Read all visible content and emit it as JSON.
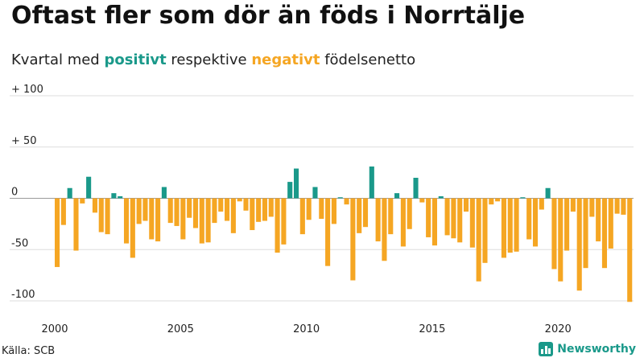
{
  "title": "Oftast fler som dör än föds i Norrtälje",
  "subtitle": {
    "prefix": "Kvartal med ",
    "positive_word": "positivt",
    "middle": " respektive ",
    "negative_word": "negativt",
    "suffix": " födelsenetto"
  },
  "source": "Källa: SCB",
  "brand": "Newsworthy",
  "colors": {
    "positive": "#1a998a",
    "negative": "#f5a623",
    "grid": "#dddddd",
    "zero": "#9a9a9a",
    "text": "#222222"
  },
  "chart_data": {
    "type": "bar",
    "title": "Oftast fler som dör än föds i Norrtälje",
    "subtitle": "Kvartal med positivt respektive negativt födelsenetto",
    "xlabel": "",
    "ylabel": "",
    "ylim": [
      -100,
      100
    ],
    "yticks": [
      100,
      50,
      0,
      -50,
      -100
    ],
    "ytick_labels": [
      "+ 100",
      "+  50",
      "0",
      "-50",
      "-100"
    ],
    "xticks": [
      "2000",
      "2005",
      "2010",
      "2015",
      "2020"
    ],
    "x_start": "2000 Q1",
    "frequency": "quarterly",
    "values": [
      -67,
      -26,
      10,
      -51,
      -5,
      21,
      -14,
      -33,
      -35,
      5,
      2,
      -44,
      -58,
      -25,
      -22,
      -40,
      -42,
      11,
      -24,
      -27,
      -40,
      -19,
      -29,
      -44,
      -43,
      -24,
      -13,
      -22,
      -34,
      -3,
      -12,
      -31,
      -23,
      -22,
      -18,
      -53,
      -45,
      16,
      29,
      -35,
      -21,
      11,
      -20,
      -66,
      -25,
      1,
      -6,
      -80,
      -34,
      -28,
      31,
      -42,
      -61,
      -35,
      5,
      -47,
      -30,
      20,
      -4,
      -38,
      -46,
      2,
      -36,
      -39,
      -43,
      -13,
      -48,
      -81,
      -63,
      -6,
      -3,
      -58,
      -53,
      -52,
      1,
      -40,
      -47,
      -11,
      10,
      -69,
      -81,
      -51,
      -13,
      -90,
      -68,
      -18,
      -42,
      -68,
      -49,
      -15,
      -16,
      -101
    ]
  }
}
